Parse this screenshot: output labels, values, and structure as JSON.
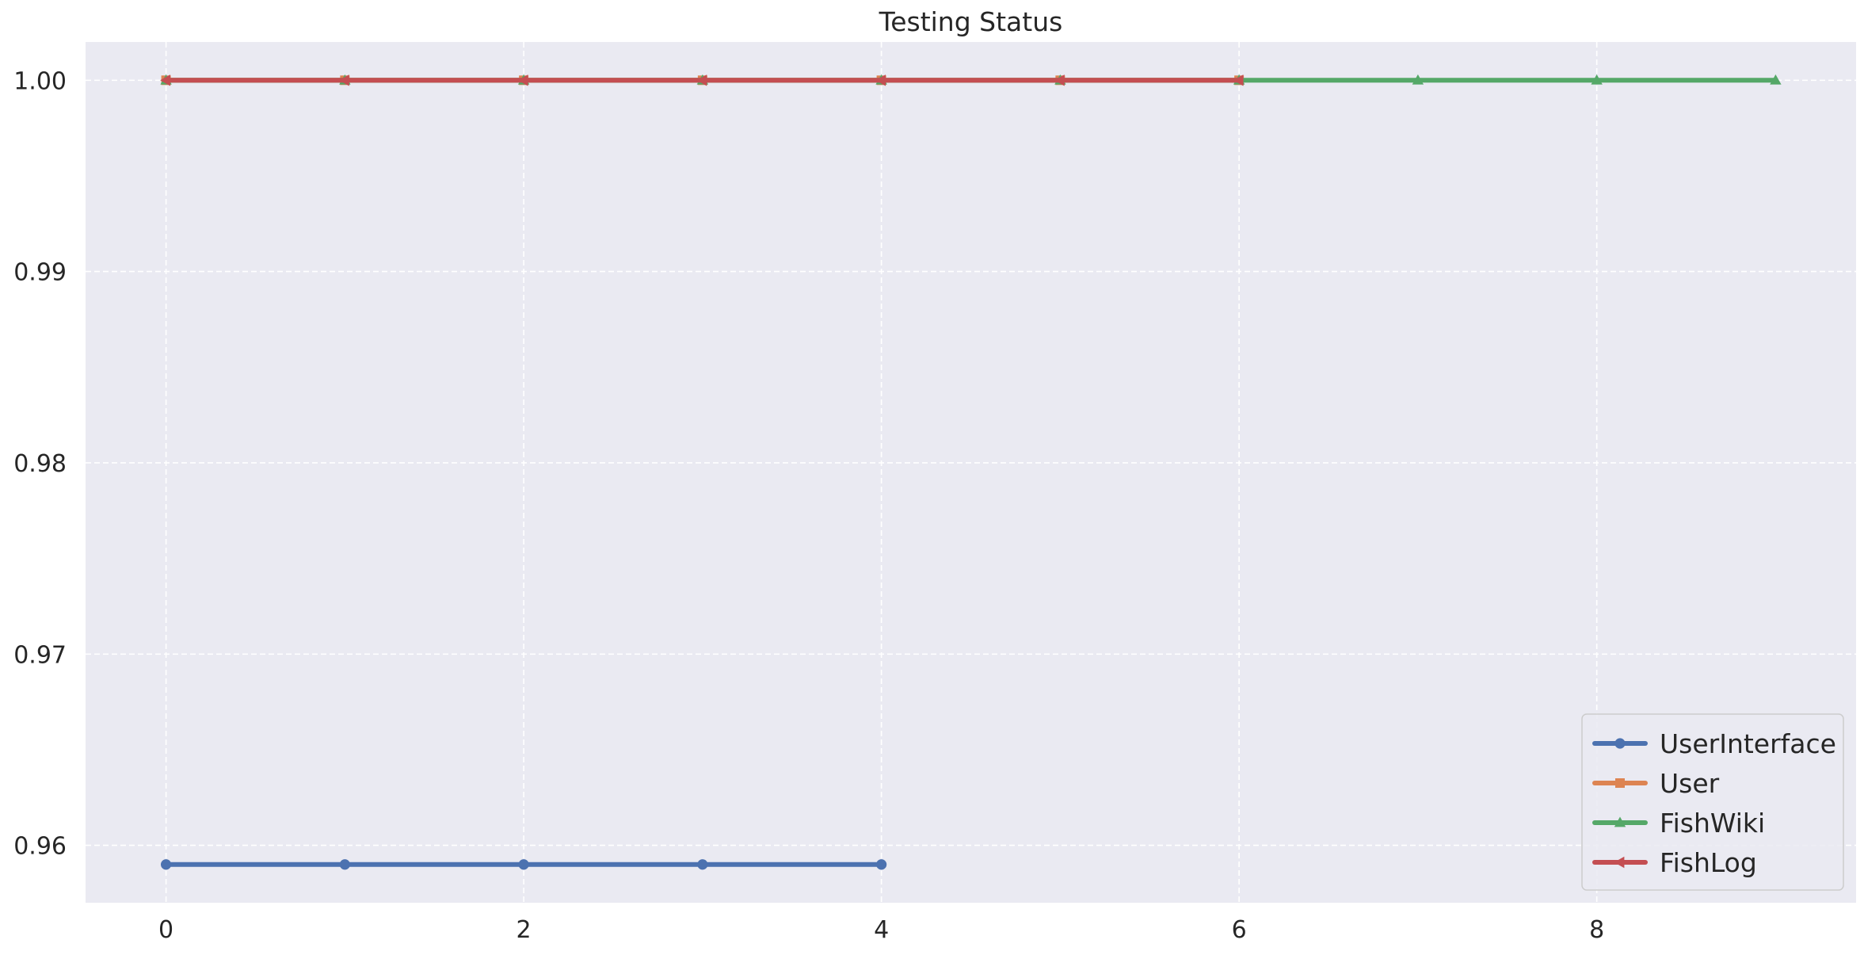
{
  "chart_data": {
    "type": "line",
    "title": "Testing Status",
    "xlabel": "",
    "ylabel": "",
    "xlim": [
      -0.45,
      9.45
    ],
    "ylim": [
      0.957,
      1.002
    ],
    "xticks": [
      "0",
      "2",
      "4",
      "6",
      "8"
    ],
    "yticks": [
      "0.96",
      "0.97",
      "0.98",
      "0.99",
      "1.00"
    ],
    "grid": true,
    "legend_position": "lower right",
    "background_color": "#eaeaf2",
    "series": [
      {
        "name": "UserInterface",
        "color": "#4c72b0",
        "marker": "circle",
        "x": [
          0,
          1,
          2,
          3,
          4
        ],
        "y": [
          0.959,
          0.959,
          0.959,
          0.959,
          0.959
        ]
      },
      {
        "name": "User",
        "color": "#dd8452",
        "marker": "square",
        "x": [
          0,
          1,
          2,
          3,
          4,
          5,
          6
        ],
        "y": [
          1.0,
          1.0,
          1.0,
          1.0,
          1.0,
          1.0,
          1.0
        ]
      },
      {
        "name": "FishWiki",
        "color": "#55a868",
        "marker": "triangle-up",
        "x": [
          0,
          1,
          2,
          3,
          4,
          5,
          6,
          7,
          8,
          9
        ],
        "y": [
          1.0,
          1.0,
          1.0,
          1.0,
          1.0,
          1.0,
          1.0,
          1.0,
          1.0,
          1.0
        ]
      },
      {
        "name": "FishLog",
        "color": "#c44e52",
        "marker": "triangle-left",
        "x": [
          0,
          1,
          2,
          3,
          4,
          5,
          6
        ],
        "y": [
          1.0,
          1.0,
          1.0,
          1.0,
          1.0,
          1.0,
          1.0
        ]
      }
    ]
  }
}
